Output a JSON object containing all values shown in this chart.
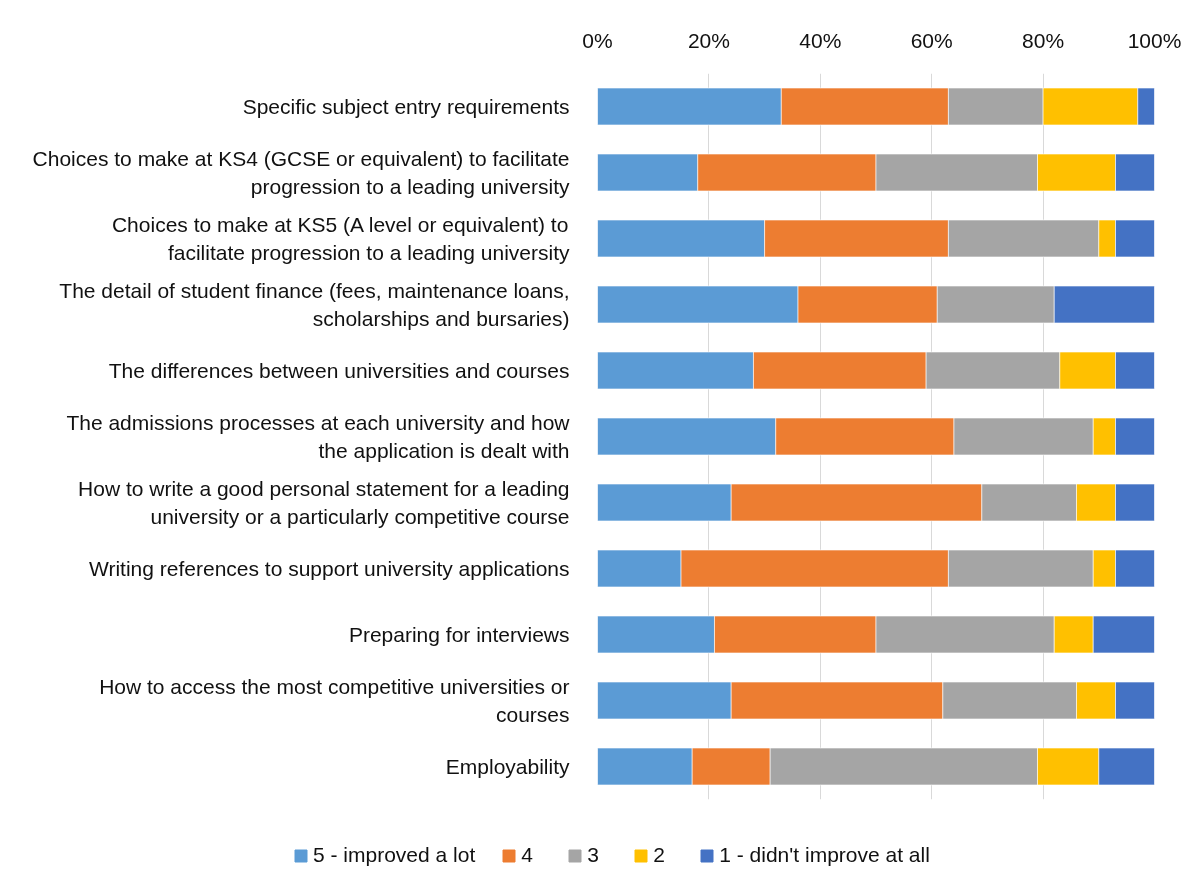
{
  "chart_data": {
    "type": "bar",
    "orientation": "horizontal",
    "stacked": true,
    "categories": [
      "Specific subject entry requirements",
      "Choices to make at KS4 (GCSE or equivalent) to facilitate\nprogression to a leading university",
      "Choices to make at KS5 (A level or equivalent) to\nfacilitate progression to a leading university",
      "The detail of student finance (fees, maintenance loans,\nscholarships and bursaries)",
      "The differences between universities and courses",
      "The admissions processes at each university and how\nthe application is dealt with",
      "How to write a good personal statement for a leading\nuniversity or a particularly competitive course",
      "Writing references to support university applications",
      "Preparing for interviews",
      "How to access the most competitive universities or\ncourses",
      "Employability"
    ],
    "series": [
      {
        "name": "5 - improved a lot",
        "color": "#5b9bd5",
        "values": [
          33,
          18,
          30,
          36,
          28,
          32,
          24,
          15,
          21,
          24,
          17
        ]
      },
      {
        "name": "4",
        "color": "#ed7d31",
        "values": [
          30,
          32,
          33,
          25,
          31,
          32,
          45,
          48,
          29,
          38,
          14
        ]
      },
      {
        "name": "3",
        "color": "#a5a5a5",
        "values": [
          17,
          29,
          27,
          21,
          24,
          25,
          17,
          26,
          32,
          24,
          48
        ]
      },
      {
        "name": "2",
        "color": "#ffc000",
        "values": [
          17,
          14,
          3,
          null,
          10,
          4,
          7,
          4,
          7,
          7,
          11
        ]
      },
      {
        "name": "1 - didn't improve at all",
        "color": "#4472c4",
        "values": [
          3,
          7,
          7,
          18,
          7,
          7,
          7,
          7,
          11,
          7,
          10
        ]
      }
    ],
    "xlim": [
      0,
      100
    ],
    "xticks": [
      {
        "value": 0,
        "label": "0%"
      },
      {
        "value": 20,
        "label": "20%"
      },
      {
        "value": 40,
        "label": "40%"
      },
      {
        "value": 60,
        "label": "60%"
      },
      {
        "value": 80,
        "label": "80%"
      },
      {
        "value": 100,
        "label": "100%"
      }
    ],
    "grid": "x",
    "legend": "bottom"
  }
}
